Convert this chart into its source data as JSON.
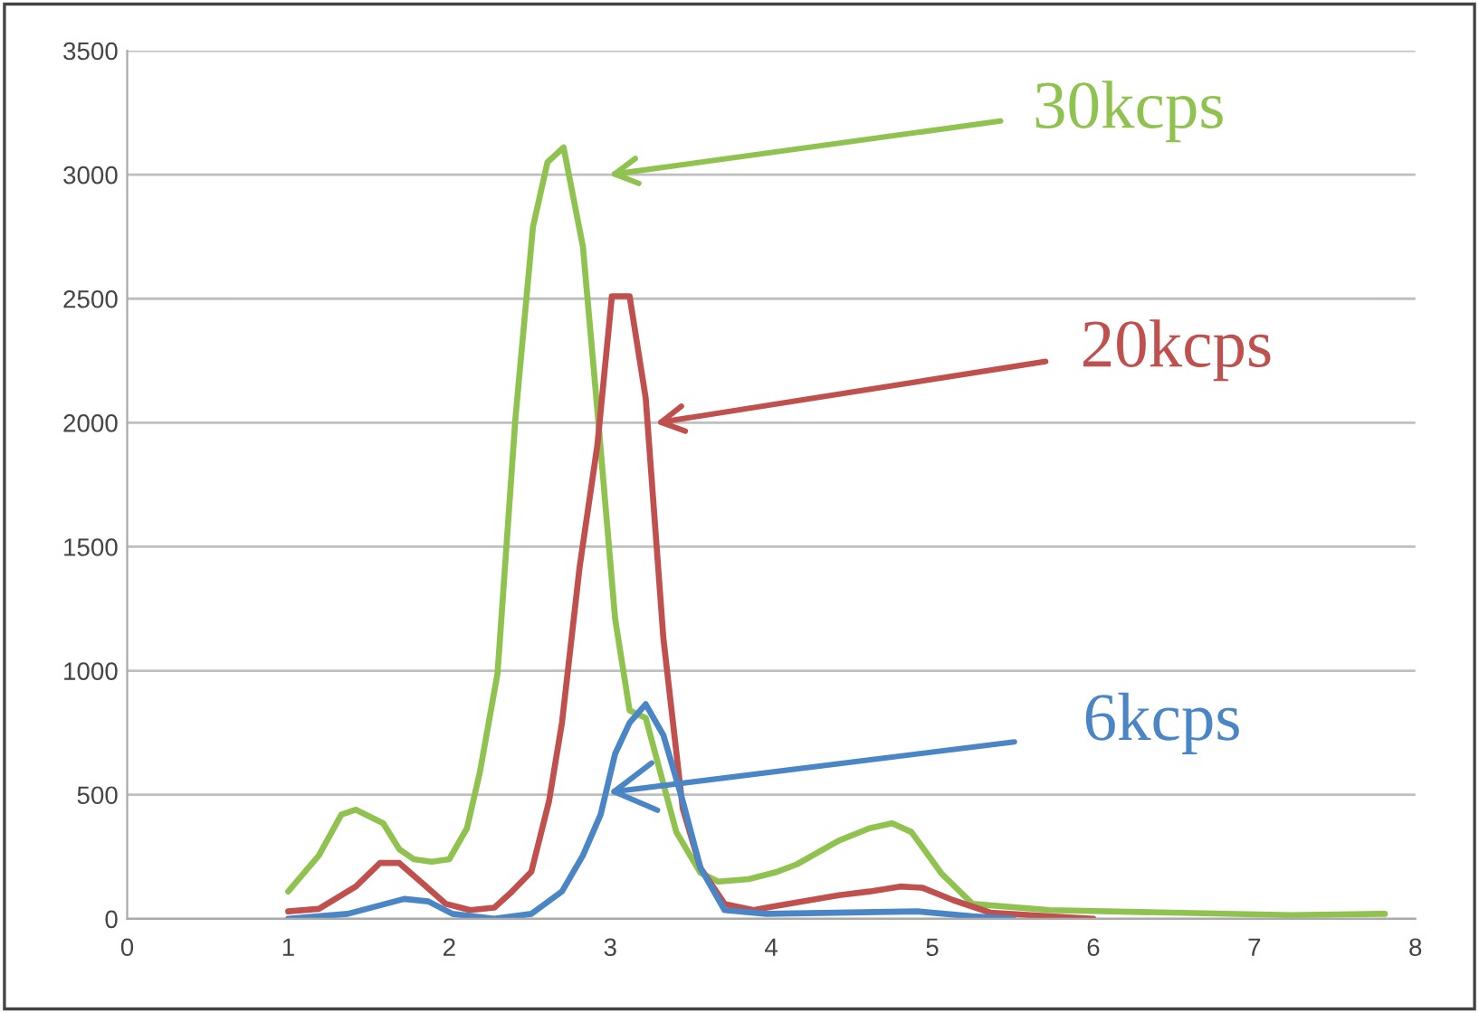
{
  "chart_data": {
    "type": "line",
    "xlim": [
      0,
      8
    ],
    "xticks": [
      0,
      1,
      2,
      3,
      4,
      5,
      6,
      7,
      8
    ],
    "ylim": [
      0,
      3500
    ],
    "yticks": [
      0,
      500,
      1000,
      1500,
      2000,
      2500,
      3000,
      3500
    ],
    "grid": "y",
    "marker": "none",
    "line_style": "solid",
    "series": [
      {
        "color": "#8fc24f",
        "x": [
          1.0,
          1.19,
          1.33,
          1.42,
          1.59,
          1.69,
          1.78,
          1.89,
          2.0,
          2.11,
          2.19,
          2.3,
          2.41,
          2.52,
          2.61,
          2.71,
          2.83,
          2.92,
          3.03,
          3.12,
          3.22,
          3.41,
          3.56,
          3.67,
          3.86,
          4.04,
          4.16,
          4.42,
          4.61,
          4.75,
          4.87,
          5.06,
          5.25,
          5.73,
          6.48,
          7.23,
          7.81
        ],
        "values": [
          110,
          255,
          420,
          440,
          385,
          280,
          240,
          230,
          240,
          365,
          590,
          990,
          2010,
          2790,
          3050,
          3110,
          2710,
          2050,
          1210,
          840,
          810,
          350,
          185,
          150,
          160,
          190,
          220,
          315,
          365,
          385,
          350,
          180,
          60,
          35,
          25,
          15,
          20
        ]
      },
      {
        "color": "#c0504d",
        "x": [
          1.0,
          1.19,
          1.42,
          1.57,
          1.69,
          1.83,
          1.98,
          2.13,
          2.28,
          2.39,
          2.51,
          2.62,
          2.7,
          2.81,
          2.92,
          3.01,
          3.12,
          3.22,
          3.33,
          3.45,
          3.56,
          3.71,
          3.89,
          3.97,
          4.42,
          4.61,
          4.8,
          4.94,
          5.13,
          5.36,
          5.73,
          6.0
        ],
        "values": [
          30,
          40,
          130,
          225,
          225,
          145,
          60,
          35,
          45,
          110,
          190,
          475,
          790,
          1420,
          1910,
          2510,
          2510,
          2100,
          1130,
          445,
          205,
          60,
          35,
          45,
          95,
          110,
          130,
          125,
          75,
          25,
          10,
          0
        ]
      },
      {
        "color": "#4a86c5",
        "x": [
          1.0,
          1.37,
          1.72,
          1.87,
          2.02,
          2.28,
          2.51,
          2.7,
          2.83,
          2.94,
          3.03,
          3.12,
          3.22,
          3.33,
          3.45,
          3.56,
          3.71,
          3.97,
          4.91,
          5.25,
          5.5
        ],
        "values": [
          0,
          20,
          80,
          70,
          20,
          0,
          20,
          110,
          255,
          420,
          665,
          790,
          865,
          740,
          475,
          205,
          35,
          20,
          30,
          10,
          0
        ]
      }
    ],
    "annotations": [
      "30kcps",
      "20kcps",
      {
        "text": "6kcps",
        "x": 2.99,
        "y": 510
      }
    ]
  }
}
